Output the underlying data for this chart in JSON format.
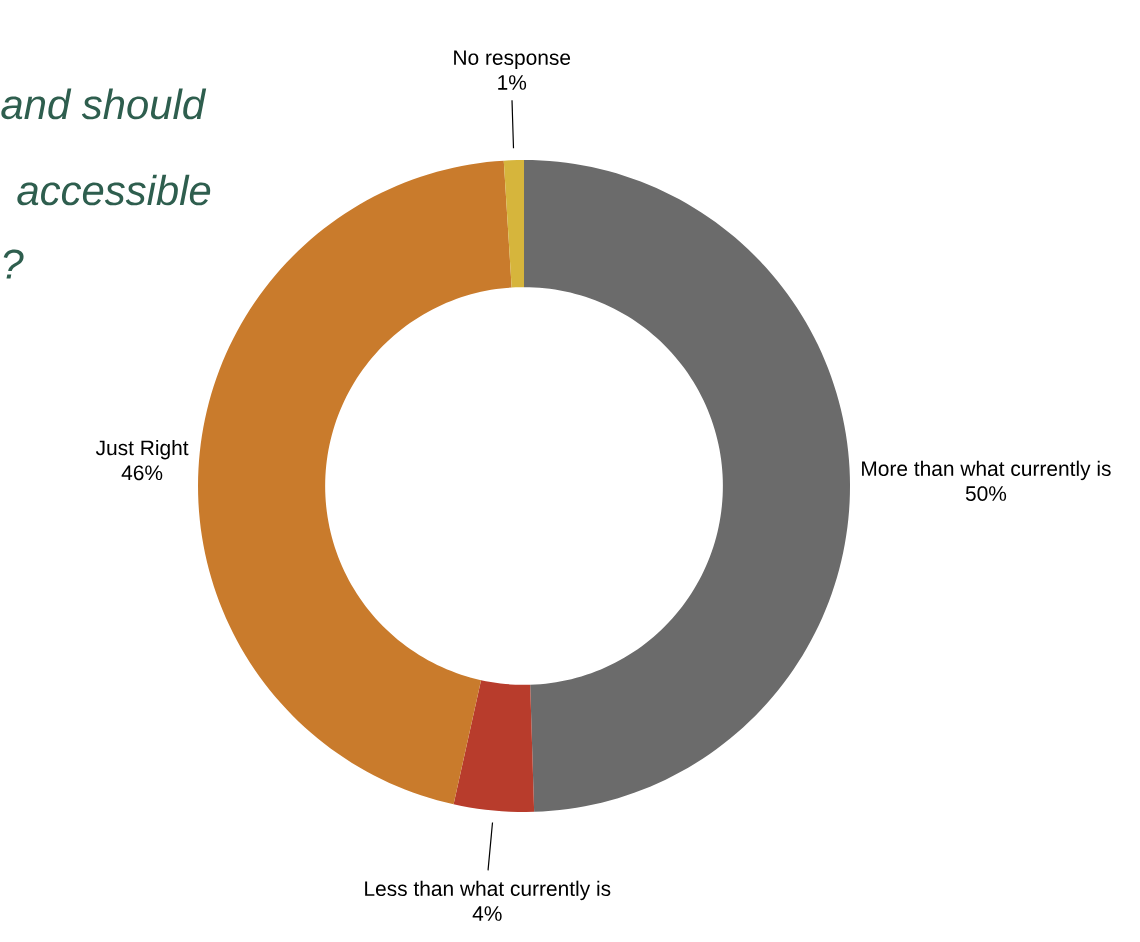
{
  "chart_data": {
    "type": "donut",
    "categories": [
      "More than what currently is",
      "Less than what currently is",
      "Just Right",
      "No response"
    ],
    "values": [
      50,
      4,
      46,
      1
    ],
    "value_labels": [
      "50%",
      "4%",
      "46%",
      "1%"
    ],
    "colors": [
      "#6b6b6b",
      "#b83c2c",
      "#c97b2c",
      "#d6b53c"
    ],
    "annotations": [
      "and should",
      "accessible",
      "?"
    ]
  }
}
